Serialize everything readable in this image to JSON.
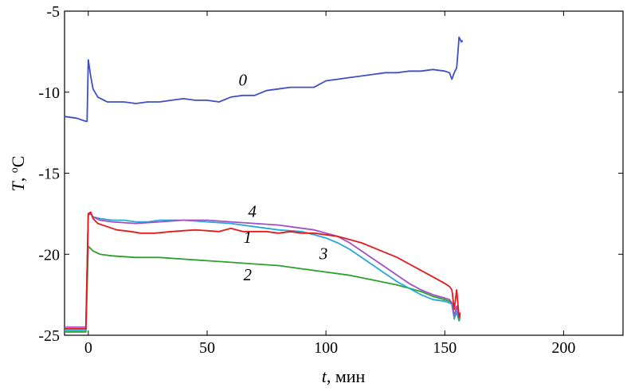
{
  "chart_data": {
    "type": "line",
    "title": "",
    "xlabel_var": "t",
    "xlabel_unit": ", мин",
    "ylabel_var": "T",
    "ylabel_sep": ", ",
    "ylabel_sup": "o",
    "ylabel_unit": "C",
    "xlim": [
      -10,
      225
    ],
    "ylim": [
      -25,
      -5
    ],
    "xticks": [
      0,
      50,
      100,
      150,
      200
    ],
    "xtick_labels": [
      "0",
      "50",
      "100",
      "150",
      "200"
    ],
    "yticks": [
      -25,
      -20,
      -15,
      -10,
      -5
    ],
    "ytick_labels": [
      "-25",
      "-20",
      "-15",
      "-10",
      "-5"
    ],
    "grid": false,
    "legend": "none",
    "series": [
      {
        "name": "0",
        "color": "#3f4fc6",
        "label_at": [
          65,
          -9.6
        ],
        "points": [
          [
            -10,
            -11.5
          ],
          [
            -5,
            -11.6
          ],
          [
            -1,
            -11.8
          ],
          [
            -0.5,
            -11.8
          ],
          [
            0,
            -8.0
          ],
          [
            1,
            -9.0
          ],
          [
            2,
            -9.8
          ],
          [
            4,
            -10.3
          ],
          [
            8,
            -10.6
          ],
          [
            15,
            -10.6
          ],
          [
            20,
            -10.7
          ],
          [
            25,
            -10.6
          ],
          [
            30,
            -10.6
          ],
          [
            35,
            -10.5
          ],
          [
            40,
            -10.4
          ],
          [
            45,
            -10.5
          ],
          [
            50,
            -10.5
          ],
          [
            55,
            -10.6
          ],
          [
            60,
            -10.3
          ],
          [
            65,
            -10.2
          ],
          [
            70,
            -10.2
          ],
          [
            75,
            -9.9
          ],
          [
            80,
            -9.8
          ],
          [
            85,
            -9.7
          ],
          [
            90,
            -9.7
          ],
          [
            95,
            -9.7
          ],
          [
            100,
            -9.3
          ],
          [
            105,
            -9.2
          ],
          [
            110,
            -9.1
          ],
          [
            115,
            -9.0
          ],
          [
            120,
            -8.9
          ],
          [
            125,
            -8.8
          ],
          [
            130,
            -8.8
          ],
          [
            135,
            -8.7
          ],
          [
            140,
            -8.7
          ],
          [
            145,
            -8.6
          ],
          [
            150,
            -8.7
          ],
          [
            152,
            -8.8
          ],
          [
            153,
            -9.2
          ],
          [
            154,
            -8.8
          ],
          [
            155,
            -8.5
          ],
          [
            155.5,
            -7.6
          ],
          [
            156,
            -6.6
          ],
          [
            157,
            -6.9
          ],
          [
            157.5,
            -6.8
          ]
        ]
      },
      {
        "name": "1",
        "color": "#e31a1c",
        "label_at": [
          67,
          -19.3
        ],
        "points": [
          [
            -10,
            -24.6
          ],
          [
            -5,
            -24.6
          ],
          [
            -1,
            -24.6
          ],
          [
            0,
            -17.5
          ],
          [
            1,
            -17.4
          ],
          [
            2,
            -17.8
          ],
          [
            4,
            -18.1
          ],
          [
            8,
            -18.3
          ],
          [
            12,
            -18.5
          ],
          [
            18,
            -18.6
          ],
          [
            22,
            -18.7
          ],
          [
            28,
            -18.7
          ],
          [
            35,
            -18.6
          ],
          [
            45,
            -18.5
          ],
          [
            55,
            -18.6
          ],
          [
            60,
            -18.4
          ],
          [
            65,
            -18.6
          ],
          [
            70,
            -18.6
          ],
          [
            75,
            -18.6
          ],
          [
            80,
            -18.7
          ],
          [
            85,
            -18.6
          ],
          [
            90,
            -18.7
          ],
          [
            95,
            -18.7
          ],
          [
            100,
            -18.8
          ],
          [
            105,
            -18.9
          ],
          [
            110,
            -19.1
          ],
          [
            115,
            -19.3
          ],
          [
            120,
            -19.6
          ],
          [
            125,
            -19.9
          ],
          [
            130,
            -20.2
          ],
          [
            135,
            -20.6
          ],
          [
            140,
            -21.0
          ],
          [
            145,
            -21.4
          ],
          [
            150,
            -21.8
          ],
          [
            152,
            -22.0
          ],
          [
            153,
            -22.2
          ],
          [
            154,
            -23.4
          ],
          [
            155,
            -22.2
          ],
          [
            156,
            -23.9
          ],
          [
            156.5,
            -23.6
          ]
        ]
      },
      {
        "name": "2",
        "color": "#2ca02c",
        "label_at": [
          67,
          -21.6
        ],
        "points": [
          [
            -10,
            -24.8
          ],
          [
            -5,
            -24.8
          ],
          [
            -1,
            -24.8
          ],
          [
            0,
            -19.5
          ],
          [
            2,
            -19.8
          ],
          [
            5,
            -20.0
          ],
          [
            10,
            -20.1
          ],
          [
            20,
            -20.2
          ],
          [
            30,
            -20.2
          ],
          [
            40,
            -20.3
          ],
          [
            50,
            -20.4
          ],
          [
            60,
            -20.5
          ],
          [
            70,
            -20.6
          ],
          [
            80,
            -20.7
          ],
          [
            90,
            -20.9
          ],
          [
            100,
            -21.1
          ],
          [
            110,
            -21.3
          ],
          [
            120,
            -21.6
          ],
          [
            130,
            -21.9
          ],
          [
            140,
            -22.3
          ],
          [
            145,
            -22.6
          ],
          [
            150,
            -22.8
          ],
          [
            152,
            -22.9
          ],
          [
            153,
            -23.0
          ],
          [
            154,
            -23.9
          ],
          [
            155,
            -23.6
          ],
          [
            156,
            -24.1
          ],
          [
            156.5,
            -23.9
          ]
        ]
      },
      {
        "name": "3",
        "color": "#26a9d8",
        "label_at": [
          99,
          -20.3
        ],
        "points": [
          [
            -10,
            -24.7
          ],
          [
            -5,
            -24.7
          ],
          [
            -1,
            -24.7
          ],
          [
            0,
            -17.6
          ],
          [
            1,
            -17.5
          ],
          [
            2,
            -17.7
          ],
          [
            5,
            -17.8
          ],
          [
            10,
            -17.9
          ],
          [
            15,
            -17.9
          ],
          [
            20,
            -18.0
          ],
          [
            25,
            -18.0
          ],
          [
            30,
            -17.9
          ],
          [
            40,
            -17.9
          ],
          [
            50,
            -18.0
          ],
          [
            60,
            -18.1
          ],
          [
            70,
            -18.3
          ],
          [
            80,
            -18.5
          ],
          [
            90,
            -18.6
          ],
          [
            95,
            -18.8
          ],
          [
            100,
            -19.0
          ],
          [
            105,
            -19.3
          ],
          [
            110,
            -19.7
          ],
          [
            115,
            -20.2
          ],
          [
            120,
            -20.7
          ],
          [
            125,
            -21.2
          ],
          [
            130,
            -21.7
          ],
          [
            135,
            -22.1
          ],
          [
            140,
            -22.5
          ],
          [
            145,
            -22.8
          ],
          [
            150,
            -22.9
          ],
          [
            152,
            -23.0
          ],
          [
            153,
            -23.1
          ],
          [
            154,
            -24.0
          ],
          [
            155,
            -23.5
          ],
          [
            156,
            -24.0
          ],
          [
            156.5,
            -23.8
          ]
        ]
      },
      {
        "name": "4",
        "color": "#a24fbf",
        "label_at": [
          69,
          -17.7
        ],
        "points": [
          [
            -10,
            -24.5
          ],
          [
            -5,
            -24.5
          ],
          [
            -1,
            -24.5
          ],
          [
            0,
            -17.5
          ],
          [
            1,
            -17.5
          ],
          [
            2,
            -17.7
          ],
          [
            5,
            -17.9
          ],
          [
            10,
            -18.0
          ],
          [
            20,
            -18.1
          ],
          [
            30,
            -18.0
          ],
          [
            40,
            -17.9
          ],
          [
            50,
            -17.9
          ],
          [
            60,
            -18.0
          ],
          [
            70,
            -18.1
          ],
          [
            80,
            -18.2
          ],
          [
            90,
            -18.4
          ],
          [
            95,
            -18.5
          ],
          [
            100,
            -18.7
          ],
          [
            105,
            -18.9
          ],
          [
            110,
            -19.3
          ],
          [
            115,
            -19.8
          ],
          [
            120,
            -20.3
          ],
          [
            125,
            -20.8
          ],
          [
            130,
            -21.3
          ],
          [
            135,
            -21.8
          ],
          [
            140,
            -22.2
          ],
          [
            145,
            -22.5
          ],
          [
            150,
            -22.7
          ],
          [
            152,
            -22.8
          ],
          [
            153,
            -23.0
          ],
          [
            154,
            -23.8
          ],
          [
            155,
            -23.2
          ],
          [
            156,
            -23.9
          ],
          [
            156.5,
            -23.7
          ]
        ]
      }
    ]
  }
}
